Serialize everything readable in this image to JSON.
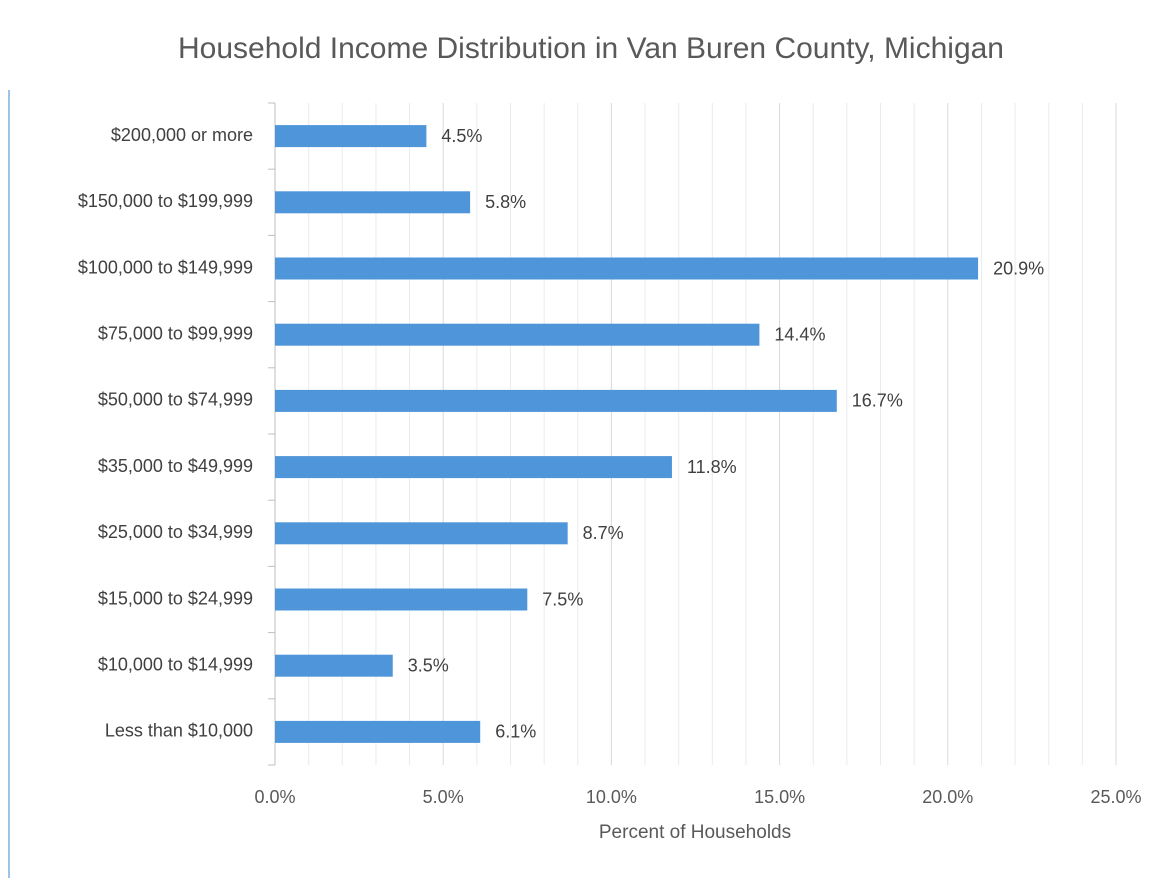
{
  "chart_data": {
    "type": "barh",
    "title": "Household Income Distribution in Van Buren County, Michigan",
    "x_label": "Percent of Households",
    "categories": [
      "Less than $10,000",
      "$10,000 to $14,999",
      "$15,000 to $24,999",
      "$25,000 to $34,999",
      "$35,000 to $49,999",
      "$50,000 to $74,999",
      "$75,000 to $99,999",
      "$100,000 to $149,999",
      "$150,000 to $199,999",
      "$200,000 or more"
    ],
    "values": [
      6.1,
      3.5,
      7.5,
      8.7,
      11.8,
      16.7,
      14.4,
      20.9,
      5.8,
      4.5
    ],
    "value_labels": [
      "6.1%",
      "3.5%",
      "7.5%",
      "8.7%",
      "11.8%",
      "16.7%",
      "14.4%",
      "20.9%",
      "5.8%",
      "4.5%"
    ],
    "color": "#4e95d9",
    "xlim": [
      0,
      25
    ],
    "xticks": [
      {
        "value": 0,
        "label": "0.0%"
      },
      {
        "value": 5,
        "label": "5.0%"
      },
      {
        "value": 10,
        "label": "10.0%"
      },
      {
        "value": 15,
        "label": "15.0%"
      },
      {
        "value": 20,
        "label": "20.0%"
      },
      {
        "value": 25,
        "label": "25.0%"
      }
    ],
    "minor_xticks": [
      1,
      2,
      3,
      4,
      6,
      7,
      8,
      9,
      11,
      12,
      13,
      14,
      16,
      17,
      18,
      19,
      21,
      22,
      23,
      24
    ],
    "grid": true
  }
}
